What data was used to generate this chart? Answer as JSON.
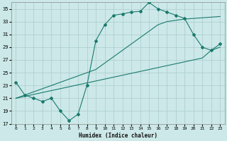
{
  "xlabel": "Humidex (Indice chaleur)",
  "ylabel": "",
  "xlim": [
    -0.5,
    23.5
  ],
  "ylim": [
    17,
    36
  ],
  "yticks": [
    17,
    19,
    21,
    23,
    25,
    27,
    29,
    31,
    33,
    35
  ],
  "xticks": [
    0,
    1,
    2,
    3,
    4,
    5,
    6,
    7,
    8,
    9,
    10,
    11,
    12,
    13,
    14,
    15,
    16,
    17,
    18,
    19,
    20,
    21,
    22,
    23
  ],
  "bg_color": "#cce8e8",
  "grid_color": "#aacccc",
  "line_color": "#1a7a6e",
  "line1_x": [
    0,
    1,
    2,
    3,
    4,
    5,
    6,
    7,
    8,
    9,
    10,
    11,
    12,
    13,
    14,
    15,
    16,
    17,
    18,
    19,
    20,
    21,
    22,
    23
  ],
  "line1_y": [
    23.5,
    21.5,
    21.0,
    20.5,
    21.0,
    19.0,
    17.5,
    18.5,
    23.0,
    30.0,
    32.5,
    34.0,
    34.2,
    34.5,
    34.6,
    36.0,
    35.0,
    34.5,
    34.0,
    33.5,
    31.0,
    29.0,
    28.5,
    29.5
  ],
  "line2_x": [
    0,
    1,
    2,
    3,
    4,
    5,
    6,
    7,
    8,
    9,
    10,
    11,
    12,
    13,
    14,
    15,
    16,
    17,
    18,
    19,
    20,
    21,
    22,
    23
  ],
  "line2_y": [
    21.0,
    21.3,
    21.6,
    21.9,
    22.2,
    22.5,
    22.8,
    23.1,
    23.4,
    23.7,
    24.0,
    24.3,
    24.6,
    24.9,
    25.2,
    25.5,
    25.8,
    26.1,
    26.4,
    26.7,
    27.0,
    27.3,
    28.5,
    29.0
  ],
  "line3_x": [
    0,
    1,
    2,
    3,
    4,
    5,
    6,
    7,
    8,
    9,
    10,
    11,
    12,
    13,
    14,
    15,
    16,
    17,
    18,
    19,
    20,
    21,
    22,
    23
  ],
  "line3_y": [
    21.0,
    21.5,
    22.0,
    22.5,
    23.0,
    23.5,
    24.0,
    24.5,
    25.0,
    25.5,
    26.5,
    27.5,
    28.5,
    29.5,
    30.5,
    31.5,
    32.5,
    33.0,
    33.2,
    33.4,
    33.5,
    33.6,
    33.7,
    33.8
  ],
  "figsize": [
    3.2,
    2.0
  ],
  "dpi": 100
}
